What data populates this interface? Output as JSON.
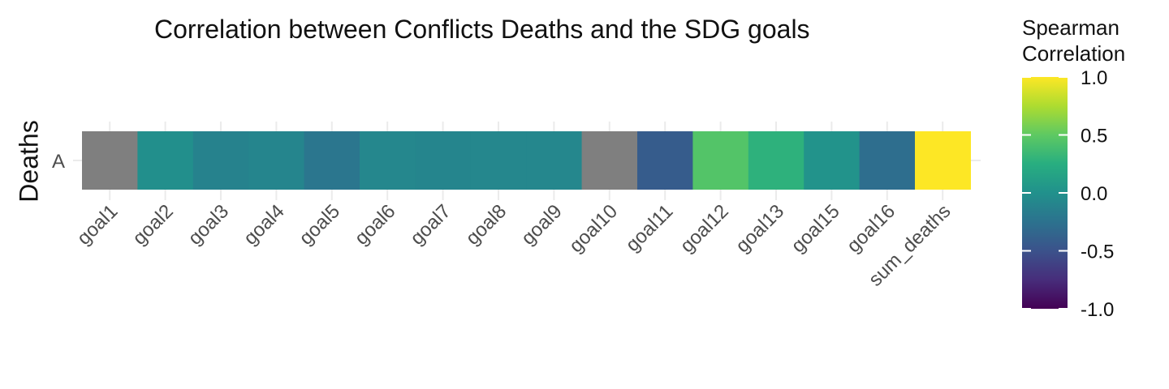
{
  "chart_data": {
    "type": "heatmap",
    "title": "Correlation between Conflicts Deaths and the SDG goals",
    "ylabel": "Deaths",
    "rows": [
      "A"
    ],
    "categories": [
      "goal1",
      "goal2",
      "goal3",
      "goal4",
      "goal5",
      "goal6",
      "goal7",
      "goal8",
      "goal9",
      "goal10",
      "goal11",
      "goal12",
      "goal13",
      "goal15",
      "goal16",
      "sum_deaths"
    ],
    "values": [
      null,
      -0.02,
      -0.12,
      -0.1,
      -0.22,
      -0.08,
      -0.1,
      -0.08,
      -0.08,
      null,
      -0.42,
      0.45,
      0.28,
      0.02,
      -0.28,
      1.0
    ],
    "na_color": "#7f7f7f",
    "colorscale": "viridis",
    "legend": {
      "title_line1": "Spearman",
      "title_line2": "Correlation",
      "ticks": [
        "1.0",
        "0.5",
        "0.0",
        "-0.5",
        "-1.0"
      ],
      "range": [
        -1,
        1
      ],
      "position": "right"
    },
    "grid": true
  }
}
